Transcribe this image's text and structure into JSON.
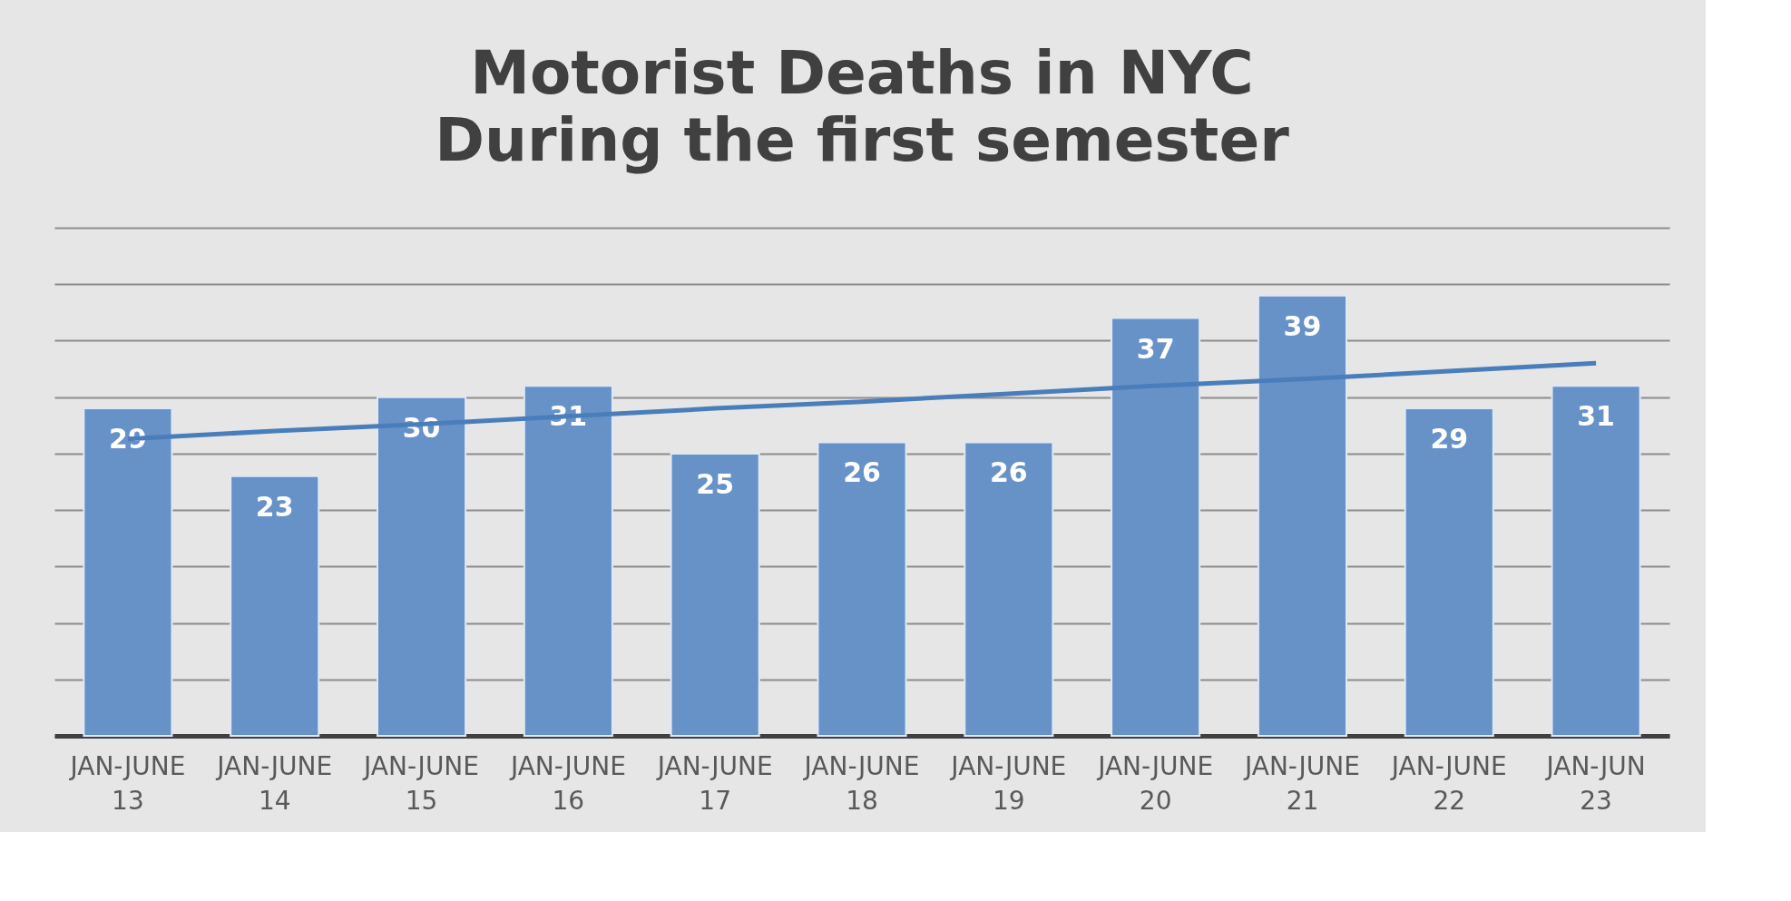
{
  "chart_data": {
    "type": "bar",
    "title": "Motorist Deaths in NYC",
    "subtitle": "During the first semester",
    "categories": [
      "JAN-JUNE 13",
      "JAN-JUNE 14",
      "JAN-JUNE 15",
      "JAN-JUNE 16",
      "JAN-JUNE 17",
      "JAN-JUNE 18",
      "JAN-JUNE 19",
      "JAN-JUNE 20",
      "JAN-JUNE 21",
      "JAN-JUNE 22",
      "JAN-JUN 23"
    ],
    "series": [
      {
        "color": "#6792c8",
        "values": [
          29,
          23,
          30,
          31,
          25,
          26,
          26,
          37,
          39,
          29,
          31
        ],
        "value_labels": [
          "29",
          "23",
          "30",
          "31",
          "25",
          "26",
          "26",
          "37",
          "39",
          "29",
          "31"
        ]
      },
      {
        "type": "line",
        "color": "#4a7ebb",
        "values": [
          26.3,
          27.0,
          27.6,
          28.3,
          29.0,
          29.6,
          30.3,
          31.0,
          31.6,
          32.3,
          33.0
        ]
      }
    ],
    "ylim": [
      0,
      45
    ],
    "yticks": [
      {
        "value": 0,
        "label": null
      },
      {
        "value": 5,
        "label": null
      },
      {
        "value": 10,
        "label": null
      },
      {
        "value": 15,
        "label": null
      },
      {
        "value": 20,
        "label": null
      },
      {
        "value": 25,
        "label": null
      },
      {
        "value": 30,
        "label": null
      },
      {
        "value": 35,
        "label": null
      },
      {
        "value": 40,
        "label": null
      },
      {
        "value": 45,
        "label": null
      }
    ],
    "grid": "y",
    "tick_labels": "x",
    "marker": "none",
    "line_style": "solid"
  }
}
